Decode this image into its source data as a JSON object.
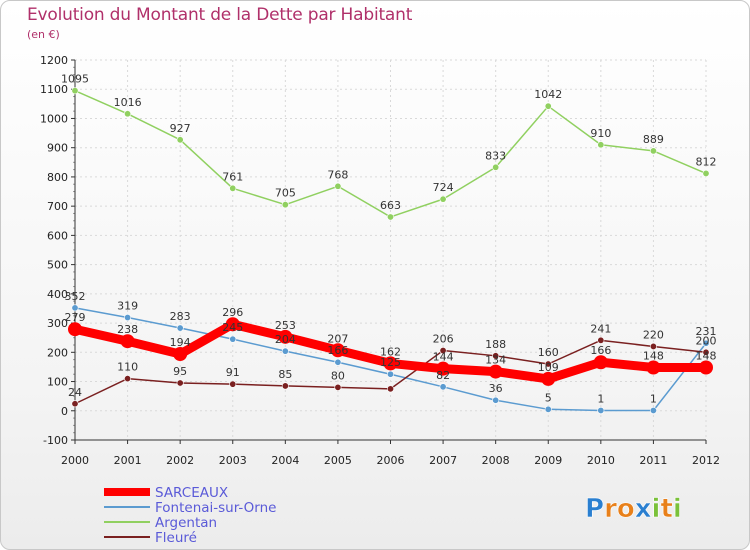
{
  "chart_data": {
    "type": "line",
    "title": "Evolution du Montant de la Dette par Habitant",
    "subtitle": "(en €)",
    "x": [
      "2000",
      "2001",
      "2002",
      "2003",
      "2004",
      "2005",
      "2006",
      "2007",
      "2008",
      "2009",
      "2010",
      "2011",
      "2012"
    ],
    "y_ticks": [
      "-100",
      "0",
      "100",
      "200",
      "300",
      "400",
      "500",
      "600",
      "700",
      "800",
      "900",
      "1000",
      "1100",
      "1200"
    ],
    "ylim": [
      -100,
      1200
    ],
    "grid": true,
    "legend_position": "bottom-left",
    "series": [
      {
        "name": "SARCEAUX",
        "color": "#ff0000",
        "values": [
          279,
          238,
          194,
          296,
          253,
          207,
          162,
          144,
          134,
          109,
          166,
          148,
          148
        ],
        "labels": [
          "279",
          "238",
          "194",
          "296",
          "253",
          "207",
          "162",
          "144",
          "134",
          "109",
          "166",
          "148",
          "148"
        ]
      },
      {
        "name": "Fontenai-sur-Orne",
        "color": "#5b9bd0",
        "values": [
          352,
          319,
          283,
          245,
          204,
          166,
          125,
          82,
          36,
          5,
          1,
          1,
          231
        ],
        "labels": [
          "352",
          "319",
          "283",
          "245",
          "204",
          "166",
          "125",
          "82",
          "36",
          "5",
          "1",
          "1",
          "231"
        ]
      },
      {
        "name": "Argentan",
        "color": "#90d060",
        "values": [
          1095,
          1016,
          927,
          761,
          705,
          768,
          663,
          724,
          833,
          1042,
          910,
          889,
          812
        ],
        "labels": [
          "1095",
          "1016",
          "927",
          "761",
          "705",
          "768",
          "663",
          "724",
          "833",
          "1042",
          "910",
          "889",
          "812"
        ]
      },
      {
        "name": "Fleuré",
        "color": "#7a2020",
        "values": [
          24,
          110,
          95,
          91,
          85,
          80,
          75,
          206,
          188,
          160,
          241,
          220,
          200
        ],
        "labels": [
          "24",
          "110",
          "95",
          "91",
          "85",
          "80",
          "",
          "206",
          "188",
          "160",
          "241",
          "220",
          "200"
        ]
      }
    ]
  },
  "brand": {
    "logo_text": "Proxiti",
    "letter_colors": [
      "#2a7fd0",
      "#e8801a",
      "#e8801a",
      "#2a7fd0",
      "#7ac13a",
      "#e8801a",
      "#7ac13a"
    ]
  }
}
